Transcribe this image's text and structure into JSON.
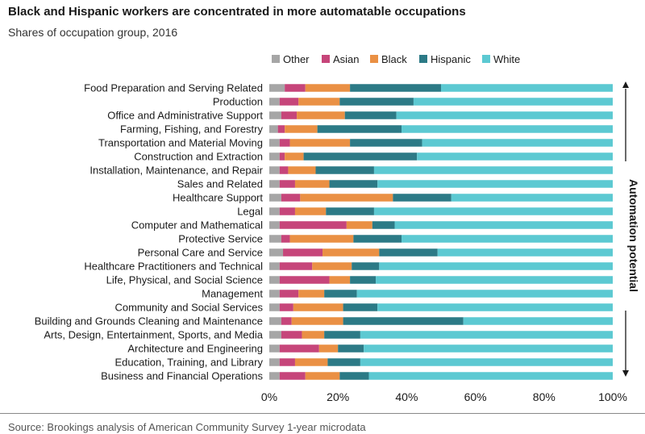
{
  "title": "Black and Hispanic workers are concentrated in more automatable occupations",
  "subtitle": "Shares of occupation group, 2016",
  "source": "Source: Brookings analysis of American Community Survey 1-year microdata",
  "colors": {
    "Other": "#a6a6a6",
    "Asian": "#c6457a",
    "Black": "#ea9044",
    "Hispanic": "#2c7a86",
    "White": "#5cc9d2"
  },
  "chart_data": {
    "type": "bar",
    "orientation": "horizontal",
    "stacked": true,
    "legend_position": "top",
    "xlim": [
      0,
      100
    ],
    "x_ticks": [
      "0%",
      "20%",
      "40%",
      "60%",
      "80%",
      "100%"
    ],
    "side_axis_label": "Automation potential",
    "categories": [
      "Food Preparation and Serving Related",
      "Production",
      "Office and Administrative Support",
      "Farming, Fishing, and Forestry",
      "Transportation and Material Moving",
      "Construction and Extraction",
      "Installation, Maintenance, and Repair",
      "Sales and Related",
      "Healthcare Support",
      "Legal",
      "Computer and Mathematical",
      "Protective Service",
      "Personal Care and Service",
      "Healthcare Practitioners and Technical",
      "Life, Physical, and Social Science",
      "Management",
      "Community and Social Services",
      "Building and Grounds Cleaning and Maintenance",
      "Arts, Design, Entertainment, Sports, and Media",
      "Architecture and Engineering",
      "Education, Training, and Library",
      "Business and Financial Operations"
    ],
    "series": [
      {
        "name": "Other",
        "values": [
          4.5,
          3,
          3.5,
          2.5,
          3,
          3,
          3,
          3,
          3.5,
          3,
          3,
          3.5,
          4,
          3,
          3,
          3,
          3,
          3.5,
          3.5,
          3,
          3,
          3
        ]
      },
      {
        "name": "Asian",
        "values": [
          6,
          5.5,
          4.5,
          2,
          3,
          1.5,
          2.5,
          4.5,
          5.5,
          4.5,
          19.5,
          2.5,
          11.5,
          9.5,
          14.5,
          5.5,
          4,
          3,
          6,
          11.5,
          4.5,
          7.5
        ]
      },
      {
        "name": "Black",
        "values": [
          13,
          12,
          14,
          9.5,
          17.5,
          5.5,
          8,
          10,
          27,
          9,
          7.5,
          18.5,
          16.5,
          11.5,
          6,
          7.5,
          14.5,
          15,
          6.5,
          5.5,
          9.5,
          10
        ]
      },
      {
        "name": "Hispanic",
        "values": [
          26.5,
          21.5,
          15,
          24.5,
          21,
          33,
          17,
          14,
          17,
          14,
          6.5,
          14,
          17,
          8,
          7.5,
          9.5,
          10,
          35,
          10.5,
          7.5,
          9.5,
          8.5
        ]
      },
      {
        "name": "White",
        "values": [
          50,
          58,
          63,
          61.5,
          55.5,
          57,
          69.5,
          68.5,
          47,
          69.5,
          63.5,
          61.5,
          51,
          68,
          69,
          74.5,
          68.5,
          43.5,
          73.5,
          72.5,
          73.5,
          71
        ]
      }
    ]
  }
}
